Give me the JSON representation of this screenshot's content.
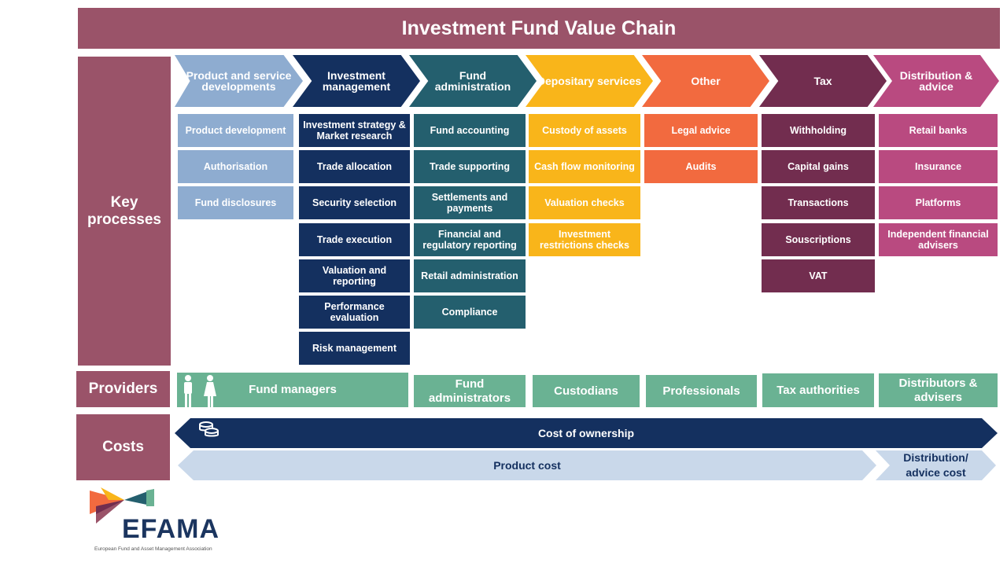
{
  "title": "Investment Fund Value Chain",
  "rows": {
    "key_processes": "Key processes",
    "providers": "Providers",
    "costs": "Costs"
  },
  "columns": [
    {
      "header": "Product and service developments",
      "color": "#8eacd0",
      "items": [
        "Product development",
        "Authorisation",
        "Fund disclosures"
      ],
      "provider": "Fund managers"
    },
    {
      "header": "Investment management",
      "color": "#14305f",
      "items": [
        "Investment strategy & Market research",
        "Trade allocation",
        "Security selection",
        "Trade execution",
        "Valuation and reporting",
        "Performance evaluation",
        "Risk management"
      ]
    },
    {
      "header": "Fund administration",
      "color": "#245f6e",
      "items": [
        "Fund accounting",
        "Trade supporting",
        "Settlements and payments",
        "Financial and regulatory reporting",
        "Retail administration",
        "Compliance"
      ],
      "provider": "Fund administrators"
    },
    {
      "header": "Depositary services",
      "color": "#f9b51a",
      "items": [
        "Custody of assets",
        "Cash flow monitoring",
        "Valuation checks",
        "Investment restrictions checks"
      ],
      "provider": "Custodians"
    },
    {
      "header": "Other",
      "color": "#f26a3f",
      "items": [
        "Legal advice",
        "Audits"
      ],
      "provider": "Professionals"
    },
    {
      "header": "Tax",
      "color": "#722d4f",
      "items": [
        "Withholding",
        "Capital gains",
        "Transactions",
        "Souscriptions",
        "VAT"
      ],
      "provider": "Tax authorities"
    },
    {
      "header": "Distribution & advice",
      "color": "#b94a80",
      "items": [
        "Retail banks",
        "Insurance",
        "Platforms",
        "Independent financial advisers"
      ],
      "provider": "Distributors & advisers"
    }
  ],
  "costs": {
    "ownership": "Cost of ownership",
    "product": "Product cost",
    "distribution": "Distribution/ advice cost"
  },
  "icons": {
    "providers": "people-icon",
    "costs": "coins-icon"
  },
  "logo": {
    "name": "EFAMA",
    "subtitle": "European Fund and Asset Management Association"
  },
  "colors": {
    "label": "#9a5369",
    "provider": "#6ab293",
    "ownership": "#14305f",
    "cost": "#c9d8ea"
  }
}
